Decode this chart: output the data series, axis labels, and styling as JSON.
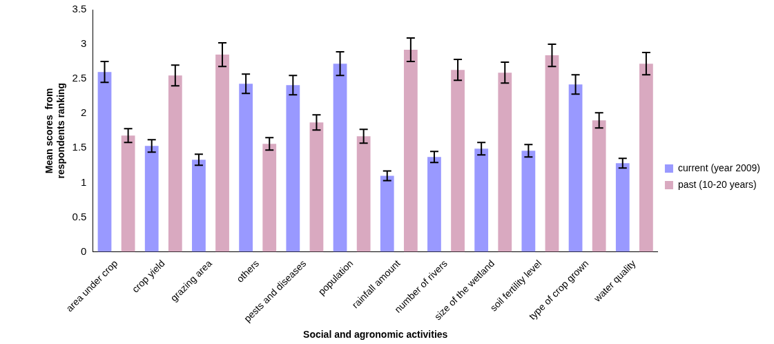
{
  "chart_data": {
    "type": "bar",
    "xlabel": "Social and agronomic activities",
    "ylabel": "Mean scores  from respondents ranking",
    "categories": [
      "area under crop",
      "crop yield",
      "grazing area",
      "others",
      "pests and diseases",
      "population",
      "rainfall amount",
      "number of rivers",
      "size of the wetland",
      "soil fertility level",
      "type of crop grown",
      "water quality"
    ],
    "series": [
      {
        "name": "current (year 2009)",
        "color": "#9999ff",
        "values": [
          2.6,
          1.53,
          1.33,
          2.43,
          2.41,
          2.72,
          1.1,
          1.37,
          1.49,
          1.46,
          2.42,
          1.28
        ],
        "errors": [
          0.15,
          0.09,
          0.08,
          0.14,
          0.14,
          0.17,
          0.07,
          0.08,
          0.09,
          0.09,
          0.14,
          0.07
        ]
      },
      {
        "name": "past (10-20 years)",
        "color": "#d9a9c0",
        "values": [
          1.68,
          2.55,
          2.85,
          1.56,
          1.87,
          1.67,
          2.92,
          2.63,
          2.59,
          2.84,
          1.9,
          2.72
        ],
        "errors": [
          0.1,
          0.15,
          0.17,
          0.09,
          0.11,
          0.1,
          0.17,
          0.15,
          0.15,
          0.16,
          0.11,
          0.16
        ]
      }
    ],
    "ylim": [
      0,
      3.5
    ],
    "yticks": [
      0,
      0.5,
      1,
      1.5,
      2,
      2.5,
      3,
      3.5
    ],
    "grid": false,
    "legend": "right"
  }
}
